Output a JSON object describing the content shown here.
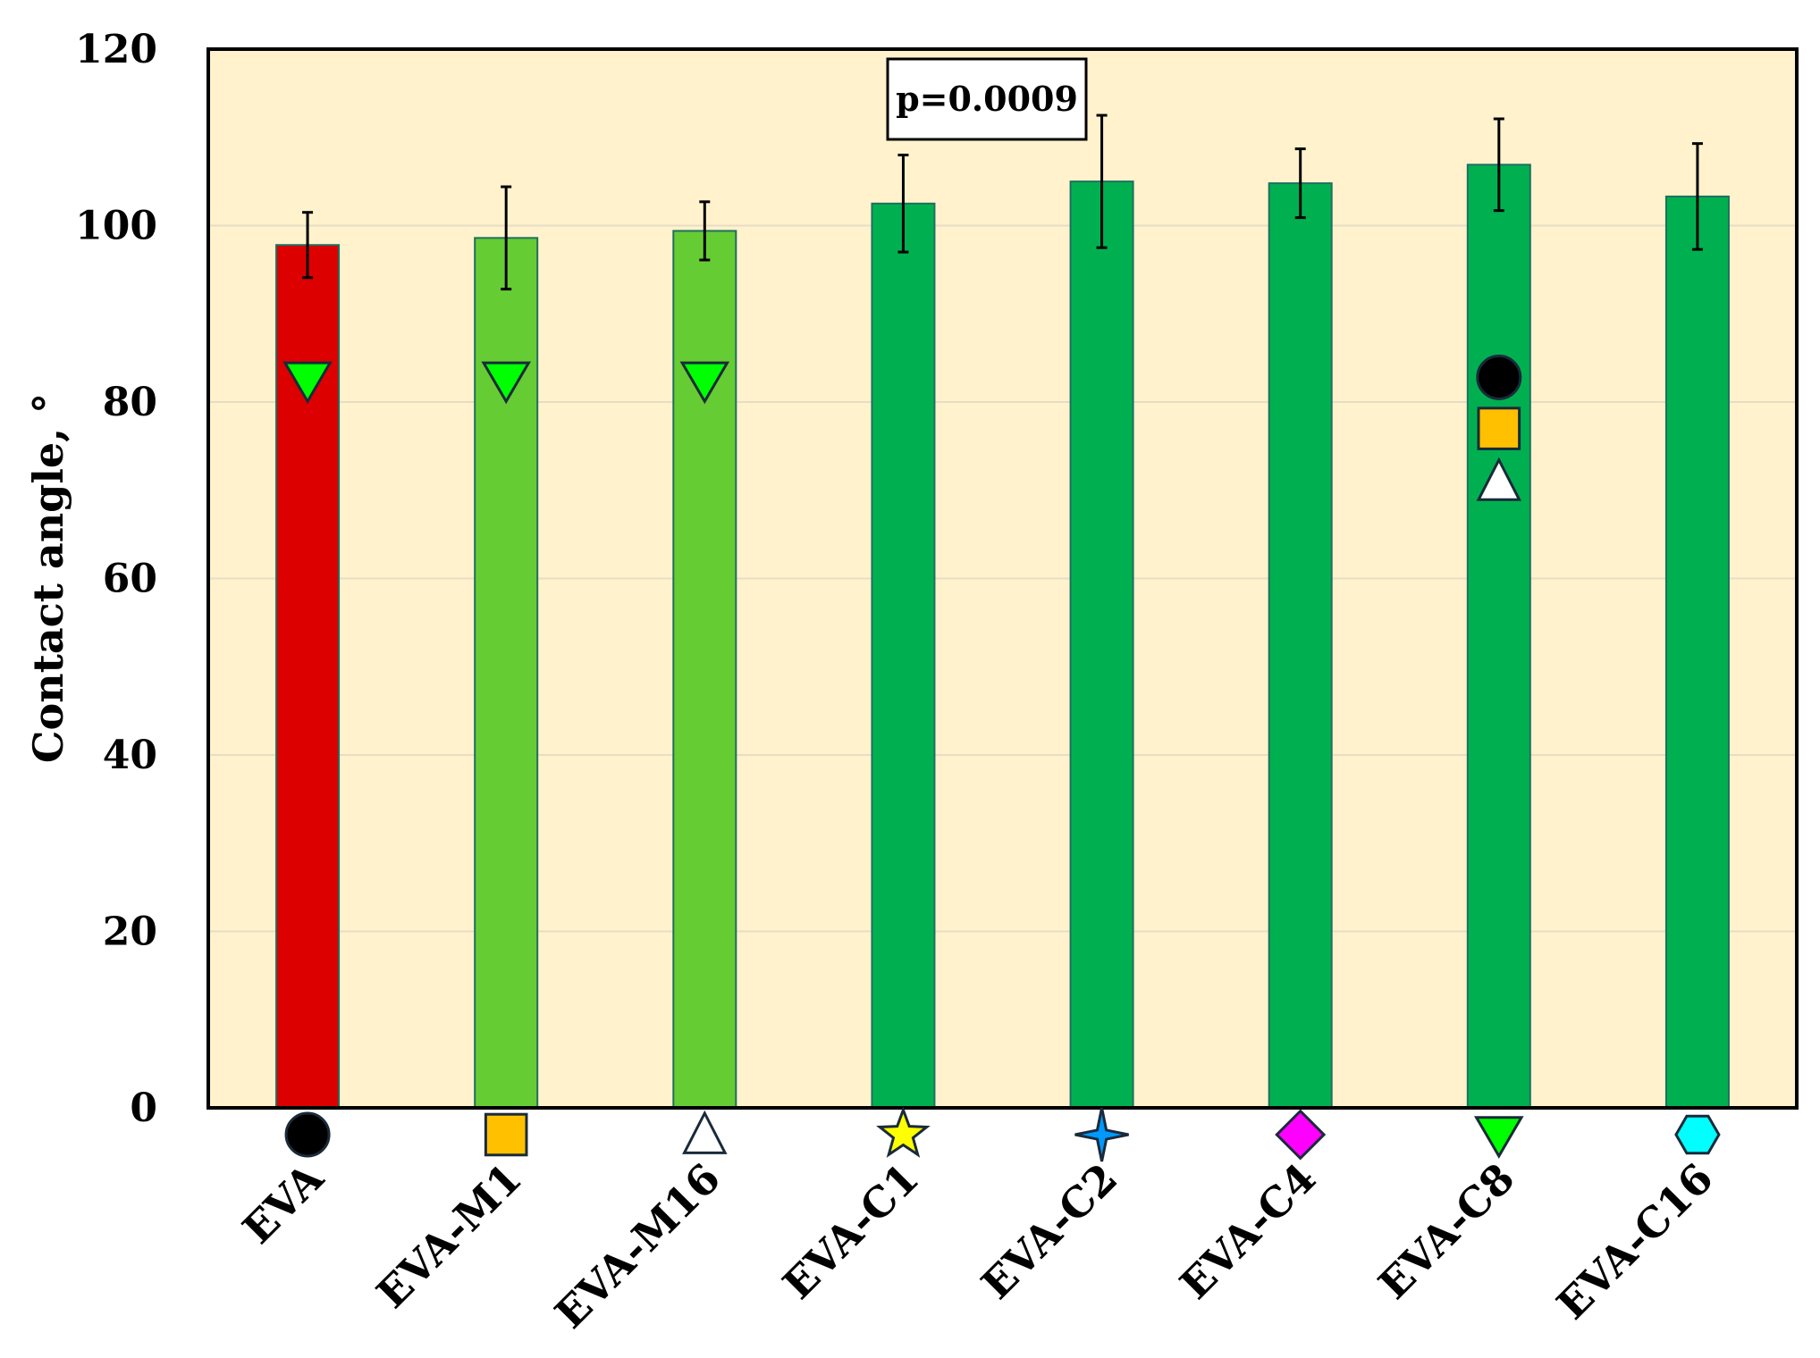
{
  "chart_data": {
    "type": "bar",
    "title": "",
    "xlabel": "",
    "ylabel": "Contact angle, °",
    "ylim": [
      0,
      120
    ],
    "yticks": [
      0,
      20,
      40,
      60,
      80,
      100,
      120
    ],
    "grid": true,
    "legend": "none",
    "plot_background": "#FFF2CC",
    "categories": [
      "EVA",
      "EVA-M1",
      "EVA-M16",
      "EVA-C1",
      "EVA-C2",
      "EVA-C4",
      "EVA-C8",
      "EVA-C16"
    ],
    "values": [
      97.8,
      98.6,
      99.4,
      102.5,
      105.0,
      104.8,
      106.9,
      103.3
    ],
    "errors": [
      3.7,
      5.8,
      3.3,
      5.5,
      7.5,
      3.9,
      5.2,
      6.0
    ],
    "colors": [
      "#DD0000",
      "#66CC33",
      "#66CC33",
      "#00B050",
      "#00B050",
      "#00B050",
      "#00B050",
      "#00B050"
    ],
    "category_markers": [
      {
        "icon": "circle-icon",
        "color": "#000000"
      },
      {
        "icon": "square-icon",
        "color": "#FFC000"
      },
      {
        "icon": "triangle-up-icon",
        "color": "#FFFFFF"
      },
      {
        "icon": "star-icon",
        "color": "#FFFF00"
      },
      {
        "icon": "four-point-star-icon",
        "color": "#0099FF"
      },
      {
        "icon": "diamond-icon",
        "color": "#FF00FF"
      },
      {
        "icon": "triangle-down-icon",
        "color": "#00FF00"
      },
      {
        "icon": "hexagon-icon",
        "color": "#00FFFF"
      }
    ],
    "significance_markers": [
      {
        "category": "EVA",
        "y": 82.5,
        "icon": "triangle-down-icon",
        "color": "#00FF00"
      },
      {
        "category": "EVA-M1",
        "y": 82.5,
        "icon": "triangle-down-icon",
        "color": "#00FF00"
      },
      {
        "category": "EVA-M16",
        "y": 82.5,
        "icon": "triangle-down-icon",
        "color": "#00FF00"
      },
      {
        "category": "EVA-C8",
        "y": 82.8,
        "icon": "circle-icon",
        "color": "#000000"
      },
      {
        "category": "EVA-C8",
        "y": 77.0,
        "icon": "square-icon",
        "color": "#FFC000"
      },
      {
        "category": "EVA-C8",
        "y": 71.0,
        "icon": "triangle-up-icon",
        "color": "#FFFFFF"
      }
    ],
    "annotation": "p=0.0009"
  }
}
